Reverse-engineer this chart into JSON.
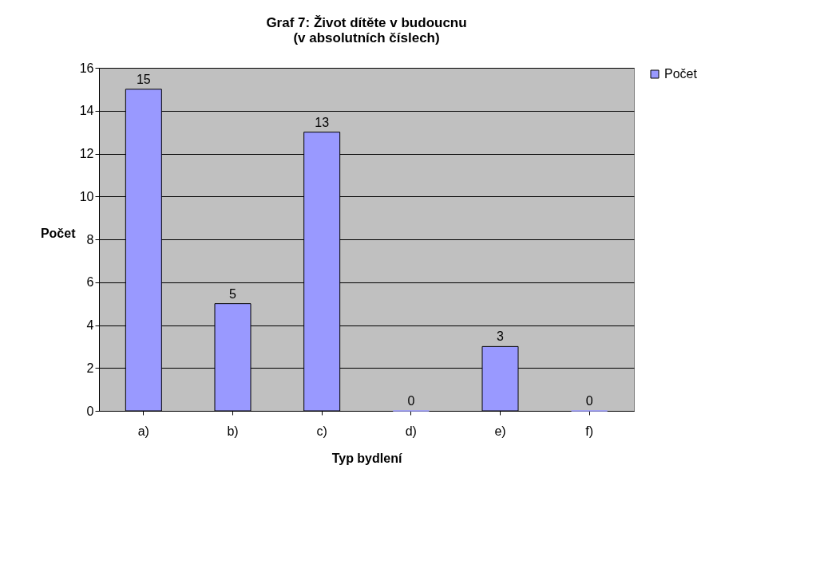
{
  "chart_data": {
    "type": "bar",
    "title": "Graf 7: Život dítěte v budoucnu\n(v absolutních číslech)",
    "xlabel": "Typ bydlení",
    "ylabel": "Počet",
    "categories": [
      "a)",
      "b)",
      "c)",
      "d)",
      "e)",
      "f)"
    ],
    "series": [
      {
        "name": "Počet",
        "color": "#9999ff",
        "values": [
          15,
          5,
          13,
          0,
          3,
          0
        ]
      }
    ],
    "ylim": [
      0,
      16
    ],
    "yticks": [
      0,
      2,
      4,
      6,
      8,
      10,
      12,
      14,
      16
    ],
    "grid": "y",
    "legend": "right",
    "data_labels": true
  }
}
